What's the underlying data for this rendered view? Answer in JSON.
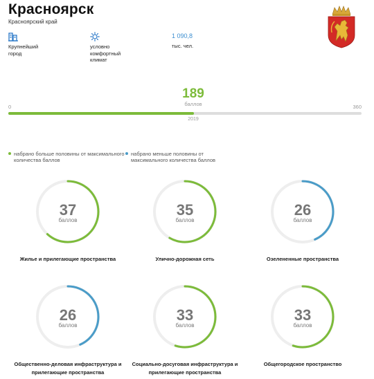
{
  "city": "Красноярск",
  "region": "Красноярский край",
  "facts": [
    {
      "icon": "building-icon",
      "lines": [
        "Крупнейший",
        "город"
      ]
    },
    {
      "icon": "sun-icon",
      "lines": [
        "условно",
        "комфортный",
        "климат"
      ]
    },
    {
      "value": "1 090,8",
      "lines": [
        "тыс. чел."
      ]
    }
  ],
  "score": {
    "value": 189,
    "unit": "баллов",
    "min": "0",
    "max": "360",
    "max_value": 360,
    "year": "2019"
  },
  "legend": [
    {
      "text": "набрано больше половины от максимального количества баллов",
      "color": "#7cbb3a"
    },
    {
      "text": "набрано меньше половины от максимального количества баллов",
      "color": "#4a9cc8"
    }
  ],
  "ring_max": 60,
  "colors": {
    "above_half": "#7cbb3a",
    "below_half": "#4a9cc8",
    "track": "#eeeeee"
  },
  "indicators": [
    {
      "value": 37,
      "unit": "баллов",
      "label": "Жилье и прилегающие пространства",
      "status": "above_half"
    },
    {
      "value": 35,
      "unit": "баллов",
      "label": "Улично-дорожная сеть",
      "status": "above_half"
    },
    {
      "value": 26,
      "unit": "баллов",
      "label": "Озелененные пространства",
      "status": "below_half"
    },
    {
      "value": 26,
      "unit": "баллов",
      "label": "Общественно-деловая инфраструктура и прилегающие пространства",
      "status": "below_half"
    },
    {
      "value": 33,
      "unit": "баллов",
      "label": "Социально-досуговая инфраструктура и прилегающие пространства",
      "status": "above_half"
    },
    {
      "value": 33,
      "unit": "баллов",
      "label": "Общегородское пространство",
      "status": "above_half"
    }
  ]
}
